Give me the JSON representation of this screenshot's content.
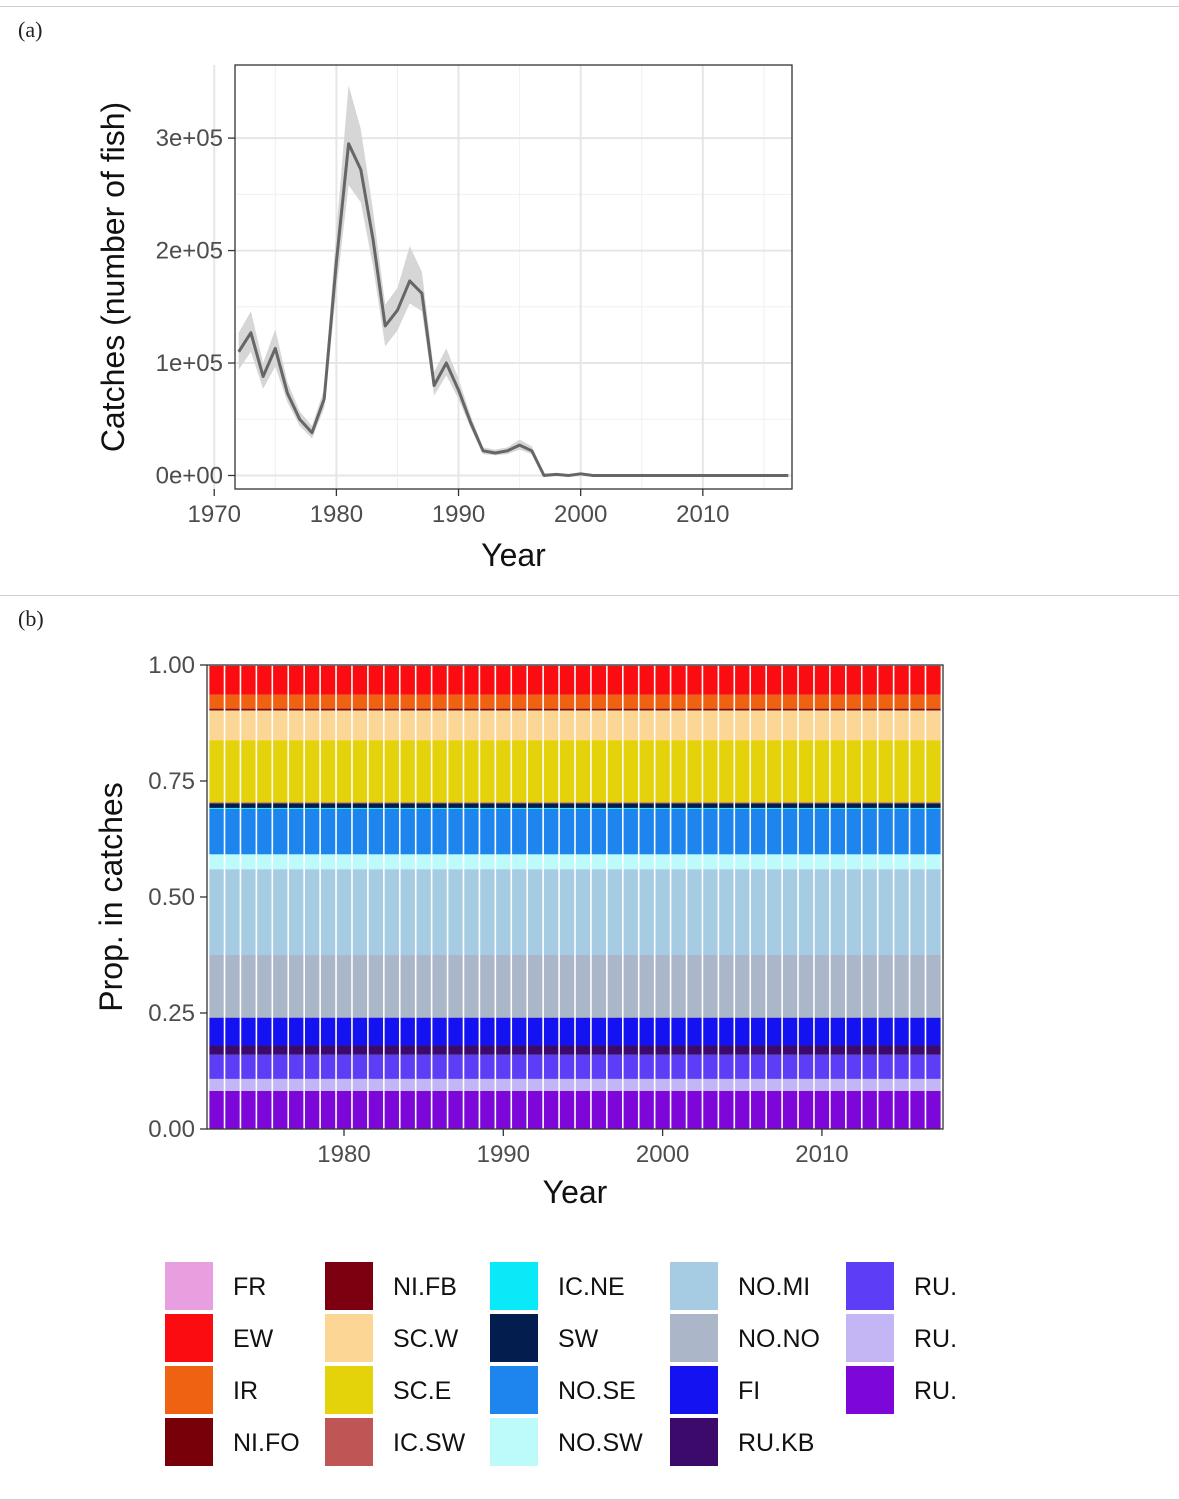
{
  "chart_data": [
    {
      "panel_label": "(a)",
      "type": "line",
      "xlabel": "Year",
      "ylabel": "Catches (number of fish)",
      "xlim": [
        1971.7,
        2017.3
      ],
      "ylim": [
        -12000,
        365000
      ],
      "x_ticks": [
        1970,
        1980,
        1990,
        2000,
        2010
      ],
      "y_ticks": [
        0,
        100000,
        200000,
        300000
      ],
      "y_tick_labels": [
        "0e+00",
        "1e+05",
        "2e+05",
        "3e+05"
      ],
      "grid": true,
      "line_color": "#666666",
      "band_color": "#d6d6d6",
      "series": [
        {
          "x": [
            1972,
            1973,
            1974,
            1975,
            1976,
            1977,
            1978,
            1979,
            1980,
            1981,
            1982,
            1983,
            1984,
            1985,
            1986,
            1987,
            1988,
            1989,
            1990,
            1991,
            1992,
            1993,
            1994,
            1995,
            1996,
            1997,
            1998,
            1999,
            2000,
            2001,
            2002,
            2003,
            2004,
            2005,
            2006,
            2007,
            2008,
            2009,
            2010,
            2011,
            2012,
            2013,
            2014,
            2015,
            2016,
            2017
          ],
          "y": [
            110000,
            127000,
            88000,
            113000,
            73000,
            50000,
            38000,
            68000,
            190000,
            295000,
            272000,
            210000,
            133000,
            147000,
            173000,
            162000,
            80000,
            100000,
            76000,
            47000,
            22000,
            20000,
            22000,
            27000,
            22000,
            0,
            1000,
            0,
            1500,
            0,
            0,
            0,
            0,
            0,
            0,
            0,
            0,
            0,
            0,
            0,
            0,
            0,
            0,
            0,
            0,
            0
          ],
          "lower": [
            94000,
            110000,
            77000,
            97000,
            65000,
            44000,
            33000,
            60000,
            165000,
            258000,
            243000,
            186000,
            115000,
            129000,
            153000,
            146000,
            71000,
            89000,
            68000,
            42000,
            19000,
            18000,
            19000,
            23000,
            19000,
            0,
            500,
            0,
            1000,
            0,
            0,
            0,
            0,
            0,
            0,
            0,
            0,
            0,
            0,
            0,
            0,
            0,
            0,
            0,
            0,
            0
          ],
          "upper": [
            127000,
            146000,
            100000,
            130000,
            83000,
            57000,
            44000,
            77000,
            218000,
            347000,
            308000,
            236000,
            152000,
            167000,
            204000,
            181000,
            92000,
            113000,
            86000,
            53000,
            25000,
            23000,
            25000,
            32000,
            26000,
            2000,
            2000,
            1000,
            2500,
            500,
            500,
            500,
            500,
            500,
            500,
            500,
            500,
            500,
            500,
            500,
            500,
            500,
            500,
            500,
            500,
            500
          ]
        }
      ]
    },
    {
      "panel_label": "(b)",
      "type": "bar",
      "stacked": true,
      "xlabel": "Year",
      "ylabel": "Prop. in catches",
      "xlim": [
        1971.4,
        2017.6
      ],
      "ylim": [
        0,
        1
      ],
      "x_ticks": [
        1980,
        1990,
        2000,
        2010
      ],
      "y_ticks": [
        0,
        0.25,
        0.5,
        0.75,
        1
      ],
      "y_tick_labels": [
        "0.00",
        "0.25",
        "0.50",
        "0.75",
        "1.00"
      ],
      "years": [
        1972,
        1973,
        1974,
        1975,
        1976,
        1977,
        1978,
        1979,
        1980,
        1981,
        1982,
        1983,
        1984,
        1985,
        1986,
        1987,
        1988,
        1989,
        1990,
        1991,
        1992,
        1993,
        1994,
        1995,
        1996,
        1997,
        1998,
        1999,
        2000,
        2001,
        2002,
        2003,
        2004,
        2005,
        2006,
        2007,
        2008,
        2009,
        2010,
        2011,
        2012,
        2013,
        2014,
        2015,
        2016,
        2017
      ],
      "stack_bottom_to_top": [
        {
          "name": "RU.",
          "color": "#7d07d8",
          "value": 0.082
        },
        {
          "name": "RU.",
          "color": "#c4b6f4",
          "value": 0.026
        },
        {
          "name": "RU.",
          "color": "#5d3ef6",
          "value": 0.052
        },
        {
          "name": "RU.KB",
          "color": "#3c0a6a",
          "value": 0.02
        },
        {
          "name": "FI",
          "color": "#1512f2",
          "value": 0.06
        },
        {
          "name": "NO.NO",
          "color": "#abb6c9",
          "value": 0.135
        },
        {
          "name": "NO.MI",
          "color": "#a6cce3",
          "value": 0.185
        },
        {
          "name": "NO.SW",
          "color": "#bdfbfb",
          "value": 0.032
        },
        {
          "name": "NO.SE",
          "color": "#1f85ee",
          "value": 0.098
        },
        {
          "name": "IC.NE",
          "color": "#0ae9f7",
          "value": 0.002
        },
        {
          "name": "SW",
          "color": "#031d4f",
          "value": 0.01
        },
        {
          "name": "IC.SW",
          "color": "#bf5555",
          "value": 0.002
        },
        {
          "name": "SC.E",
          "color": "#e4d30b",
          "value": 0.134
        },
        {
          "name": "SC.W",
          "color": "#fbd694",
          "value": 0.064
        },
        {
          "name": "NI.FB",
          "color": "#7c0010",
          "value": 0.002
        },
        {
          "name": "NI.FO",
          "color": "#780008",
          "value": 0.002
        },
        {
          "name": "IR",
          "color": "#ef6211",
          "value": 0.03
        },
        {
          "name": "EW",
          "color": "#fa0c11",
          "value": 0.062
        },
        {
          "name": "FR",
          "color": "#e89fe0",
          "value": 0.002
        }
      ],
      "legend_columns": [
        [
          {
            "name": "FR",
            "color": "#e89fe0"
          },
          {
            "name": "EW",
            "color": "#fa0c11"
          },
          {
            "name": "IR",
            "color": "#ef6211"
          },
          {
            "name": "NI.FO",
            "color": "#780008"
          }
        ],
        [
          {
            "name": "NI.FB",
            "color": "#7c0010"
          },
          {
            "name": "SC.W",
            "color": "#fbd694"
          },
          {
            "name": "SC.E",
            "color": "#e4d30b"
          },
          {
            "name": "IC.SW",
            "color": "#bf5555"
          }
        ],
        [
          {
            "name": "IC.NE",
            "color": "#0ae9f7"
          },
          {
            "name": "SW",
            "color": "#031d4f"
          },
          {
            "name": "NO.SE",
            "color": "#1f85ee"
          },
          {
            "name": "NO.SW",
            "color": "#bdfbfb"
          }
        ],
        [
          {
            "name": "NO.MI",
            "color": "#a6cce3"
          },
          {
            "name": "NO.NO",
            "color": "#abb6c9"
          },
          {
            "name": "FI",
            "color": "#1512f2"
          },
          {
            "name": "RU.KB",
            "color": "#3c0a6a"
          }
        ],
        [
          {
            "name": "RU.",
            "color": "#5d3ef6"
          },
          {
            "name": "RU.",
            "color": "#c4b6f4"
          },
          {
            "name": "RU.",
            "color": "#7d07d8"
          }
        ]
      ],
      "legend_placement": "bottom"
    }
  ]
}
